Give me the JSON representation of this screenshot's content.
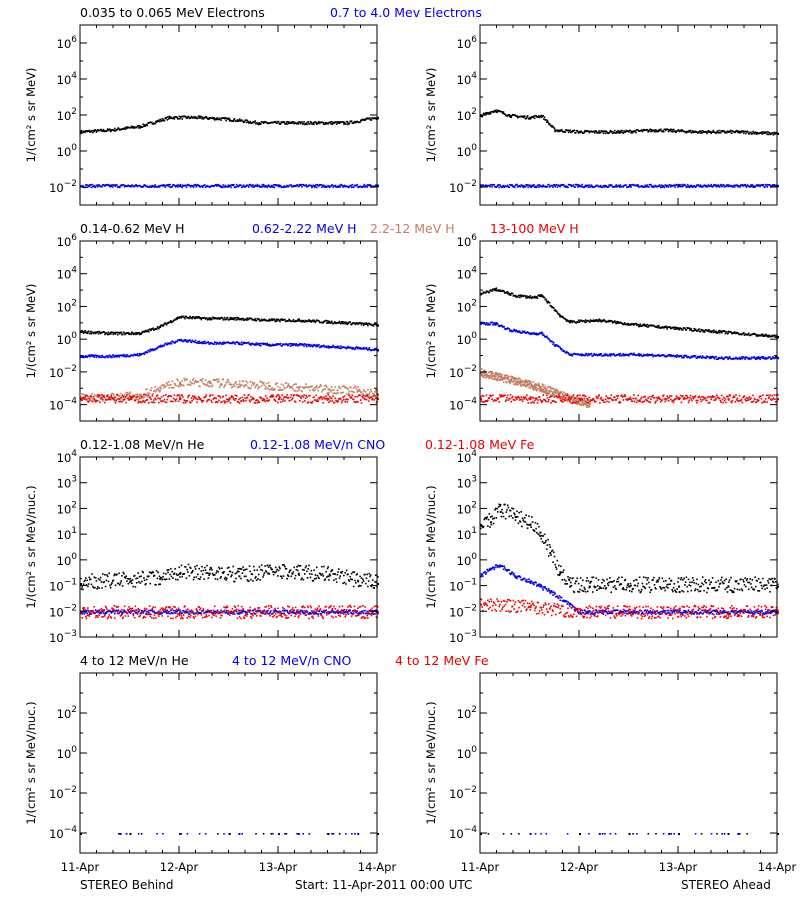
{
  "colors": {
    "black": "#000000",
    "blue": "#0000ee",
    "tan": "#c08060",
    "red": "#ee0000"
  },
  "footer": {
    "left": "STEREO Behind",
    "center": "Start: 11-Apr-2011 00:00 UTC",
    "right": "STEREO Ahead"
  },
  "x_axis": {
    "ticks": [
      "11-Apr",
      "12-Apr",
      "13-Apr",
      "14-Apr"
    ],
    "range_days": [
      0,
      3
    ]
  },
  "rows": [
    {
      "titles": [
        {
          "text": "0.035 to 0.065 MeV Electrons",
          "color": "black"
        },
        {
          "text": "0.7 to 4.0 Mev Electrons",
          "color": "blue"
        }
      ],
      "ylabel": "1/(cm² s sr MeV)",
      "ylog": [
        -3,
        7
      ],
      "yticks": [
        -2,
        0,
        2,
        4,
        6
      ]
    },
    {
      "titles": [
        {
          "text": "0.14-0.62 MeV H",
          "color": "black"
        },
        {
          "text": "0.62-2.22 MeV H",
          "color": "blue"
        },
        {
          "text": "2.2-12 MeV H",
          "color": "tan"
        },
        {
          "text": "13-100 MeV H",
          "color": "red"
        }
      ],
      "ylabel": "1/(cm² s sr MeV)",
      "ylog": [
        -5,
        6
      ],
      "yticks": [
        -4,
        -2,
        0,
        2,
        4,
        6
      ]
    },
    {
      "titles": [
        {
          "text": "0.12-1.08 MeV/n He",
          "color": "black"
        },
        {
          "text": "0.12-1.08 MeV/n CNO",
          "color": "blue"
        },
        {
          "text": "0.12-1.08 MeV Fe",
          "color": "red"
        }
      ],
      "ylabel": "1/(cm² s sr MeV/nuc.)",
      "ylog": [
        -3,
        4
      ],
      "yticks": [
        -3,
        -2,
        -1,
        0,
        1,
        2,
        3,
        4
      ]
    },
    {
      "titles": [
        {
          "text": "4 to 12 MeV/n He",
          "color": "black"
        },
        {
          "text": "4 to 12 MeV/n CNO",
          "color": "blue"
        },
        {
          "text": "4 to 12 MeV Fe",
          "color": "red"
        }
      ],
      "ylabel": "1/(cm² s sr MeV/nuc.)",
      "ylog": [
        -5,
        4
      ],
      "yticks": [
        -4,
        -2,
        0,
        2
      ]
    }
  ],
  "chart_data": [
    {
      "type": "scatter",
      "panel": "electrons-behind",
      "ylog": [
        -3,
        7
      ],
      "series": [
        {
          "name": "0.035 to 0.065 MeV Electrons",
          "color": "#000000",
          "x": [
            0,
            0.3,
            0.6,
            0.9,
            1.2,
            1.5,
            1.8,
            2.1,
            2.4,
            2.7,
            3.0
          ],
          "log10_y": [
            1.1,
            1.2,
            1.4,
            1.9,
            1.9,
            1.8,
            1.6,
            1.6,
            1.6,
            1.6,
            1.9
          ]
        },
        {
          "name": "0.7 to 4.0 Mev Electrons",
          "color": "#0000ee",
          "x": [
            0,
            0.5,
            1.0,
            1.5,
            2.0,
            2.5,
            3.0
          ],
          "log10_y": [
            -1.9,
            -1.9,
            -1.9,
            -1.9,
            -1.9,
            -1.9,
            -1.9
          ]
        }
      ]
    },
    {
      "type": "scatter",
      "panel": "electrons-ahead",
      "ylog": [
        -3,
        7
      ],
      "series": [
        {
          "name": "0.035 to 0.065 MeV Electrons",
          "color": "#000000",
          "x": [
            0,
            0.15,
            0.3,
            0.5,
            0.62,
            0.75,
            1.0,
            1.4,
            1.8,
            2.2,
            2.6,
            3.0
          ],
          "log10_y": [
            2.0,
            2.3,
            2.0,
            1.9,
            2.0,
            1.2,
            1.1,
            1.1,
            1.2,
            1.1,
            1.1,
            1.0
          ]
        },
        {
          "name": "0.7 to 4.0 Mev Electrons",
          "color": "#0000ee",
          "x": [
            0,
            0.5,
            1.0,
            1.5,
            2.0,
            2.5,
            3.0
          ],
          "log10_y": [
            -1.9,
            -1.9,
            -1.9,
            -1.9,
            -1.9,
            -1.9,
            -1.9
          ]
        }
      ]
    },
    {
      "type": "scatter",
      "panel": "protons-behind",
      "ylog": [
        -5,
        6
      ],
      "series": [
        {
          "name": "0.14-0.62 MeV H",
          "color": "#000000",
          "x": [
            0,
            0.3,
            0.6,
            0.8,
            1.0,
            1.3,
            1.6,
            1.9,
            2.2,
            2.5,
            2.8,
            3.0
          ],
          "log10_y": [
            0.5,
            0.4,
            0.4,
            0.8,
            1.4,
            1.3,
            1.3,
            1.2,
            1.2,
            1.1,
            1.0,
            0.9
          ]
        },
        {
          "name": "0.62-2.22 MeV H",
          "color": "#0000ee",
          "x": [
            0,
            0.3,
            0.6,
            0.8,
            1.0,
            1.3,
            1.6,
            1.9,
            2.2,
            2.5,
            2.8,
            3.0
          ],
          "log10_y": [
            -1.0,
            -1.0,
            -0.9,
            -0.4,
            0.0,
            -0.2,
            -0.2,
            -0.3,
            -0.3,
            -0.4,
            -0.5,
            -0.6
          ]
        },
        {
          "name": "2.2-12 MeV H",
          "color": "#c08060",
          "x": [
            0,
            0.3,
            0.6,
            0.8,
            1.0,
            1.3,
            1.6,
            1.9,
            2.2,
            2.5,
            2.8,
            3.0
          ],
          "log10_y": [
            -3.5,
            -3.5,
            -3.4,
            -2.9,
            -2.6,
            -2.6,
            -2.7,
            -2.8,
            -2.9,
            -3.0,
            -3.1,
            -3.3
          ]
        },
        {
          "name": "13-100 MeV H",
          "color": "#ee0000",
          "x": [
            0,
            0.5,
            1.0,
            1.5,
            2.0,
            2.5,
            3.0
          ],
          "log10_y": [
            -3.6,
            -3.6,
            -3.6,
            -3.6,
            -3.6,
            -3.6,
            -3.6
          ]
        }
      ]
    },
    {
      "type": "scatter",
      "panel": "protons-ahead",
      "ylog": [
        -5,
        6
      ],
      "series": [
        {
          "name": "0.14-0.62 MeV H",
          "color": "#000000",
          "x": [
            0,
            0.15,
            0.35,
            0.55,
            0.62,
            0.8,
            0.9,
            1.2,
            1.6,
            2.0,
            2.4,
            2.8,
            3.0
          ],
          "log10_y": [
            2.8,
            3.1,
            2.7,
            2.6,
            2.7,
            1.5,
            1.1,
            1.2,
            0.9,
            0.7,
            0.5,
            0.3,
            0.2
          ]
        },
        {
          "name": "0.62-2.22 MeV H",
          "color": "#0000ee",
          "x": [
            0,
            0.15,
            0.3,
            0.5,
            0.62,
            0.75,
            0.9,
            1.2,
            1.6,
            2.0,
            2.4,
            2.8,
            3.0
          ],
          "log10_y": [
            1.0,
            1.0,
            0.6,
            0.4,
            0.4,
            -0.3,
            -0.9,
            -0.9,
            -0.9,
            -1.0,
            -1.1,
            -1.1,
            -1.1
          ]
        },
        {
          "name": "2.2-12 MeV H",
          "color": "#c08060",
          "x": [
            0,
            0.2,
            0.4,
            0.6,
            0.75,
            0.9,
            1.1
          ],
          "log10_y": [
            -2.0,
            -2.3,
            -2.6,
            -2.9,
            -3.2,
            -3.6,
            -3.9
          ]
        },
        {
          "name": "13-100 MeV H",
          "color": "#ee0000",
          "x": [
            0,
            0.5,
            1.0,
            1.5,
            2.0,
            2.5,
            3.0
          ],
          "log10_y": [
            -3.6,
            -3.6,
            -3.6,
            -3.6,
            -3.6,
            -3.6,
            -3.6
          ]
        }
      ]
    },
    {
      "type": "scatter",
      "panel": "heavy-ions-low-behind",
      "ylog": [
        -3,
        4
      ],
      "series": [
        {
          "name": "0.12-1.08 MeV/n He",
          "color": "#000000",
          "x": [
            0,
            0.5,
            0.8,
            1.0,
            1.3,
            1.6,
            1.9,
            2.2,
            2.5,
            2.8,
            3.0
          ],
          "log10_y": [
            -0.9,
            -0.8,
            -0.7,
            -0.5,
            -0.5,
            -0.6,
            -0.5,
            -0.5,
            -0.6,
            -0.8,
            -0.9
          ]
        },
        {
          "name": "0.12-1.08 MeV/n CNO",
          "color": "#0000ee",
          "x": [
            0,
            0.5,
            1.0,
            1.5,
            2.0,
            2.5,
            3.0
          ],
          "log10_y": [
            -2.0,
            -2.0,
            -2.0,
            -2.0,
            -2.0,
            -2.0,
            -2.0
          ]
        },
        {
          "name": "0.12-1.08 MeV Fe",
          "color": "#ee0000",
          "x": [
            0,
            0.5,
            1.0,
            1.5,
            2.0,
            2.5,
            3.0
          ],
          "log10_y": [
            -2.0,
            -2.0,
            -2.0,
            -2.0,
            -2.0,
            -2.0,
            -2.0
          ]
        }
      ]
    },
    {
      "type": "scatter",
      "panel": "heavy-ions-low-ahead",
      "ylog": [
        -3,
        4
      ],
      "series": [
        {
          "name": "0.12-1.08 MeV/n He",
          "color": "#000000",
          "x": [
            0,
            0.1,
            0.2,
            0.35,
            0.5,
            0.6,
            0.7,
            0.8,
            0.9,
            1.1,
            1.5,
            2.0,
            2.5,
            3.0
          ],
          "log10_y": [
            1.4,
            1.5,
            1.9,
            1.7,
            1.4,
            1.1,
            0.3,
            -0.5,
            -1.0,
            -1.0,
            -1.0,
            -1.0,
            -1.0,
            -1.0
          ]
        },
        {
          "name": "0.12-1.08 MeV/n CNO",
          "color": "#0000ee",
          "x": [
            0,
            0.1,
            0.2,
            0.35,
            0.5,
            0.6,
            0.7,
            1.0,
            1.5,
            2.0,
            2.5,
            3.0
          ],
          "log10_y": [
            -0.6,
            -0.3,
            -0.2,
            -0.6,
            -0.8,
            -1.0,
            -1.2,
            -2.0,
            -2.0,
            -2.0,
            -2.0,
            -2.0
          ]
        },
        {
          "name": "0.12-1.08 MeV Fe",
          "color": "#ee0000",
          "x": [
            0,
            0.5,
            1.0,
            1.5,
            2.0,
            2.5,
            3.0
          ],
          "log10_y": [
            -1.7,
            -1.8,
            -2.0,
            -2.0,
            -2.0,
            -2.0,
            -2.0
          ]
        }
      ]
    },
    {
      "type": "scatter",
      "panel": "heavy-ions-high-behind",
      "ylog": [
        -5,
        4
      ],
      "series": [
        {
          "name": "4 to 12 MeV/n He",
          "color": "#000000",
          "x": [
            0,
            0.5,
            1.0,
            1.5,
            2.0,
            2.5,
            3.0
          ],
          "log10_y": [
            -4.0,
            -4.0,
            -4.0,
            -4.0,
            -4.0,
            -4.0,
            -4.0
          ]
        },
        {
          "name": "4 to 12 MeV/n CNO",
          "color": "#0000ee",
          "x": [
            0.4,
            1.0,
            1.6,
            2.2,
            2.8
          ],
          "log10_y": [
            -4.0,
            -4.0,
            -4.0,
            -4.0,
            -4.0
          ]
        }
      ]
    },
    {
      "type": "scatter",
      "panel": "heavy-ions-high-ahead",
      "ylog": [
        -5,
        4
      ],
      "series": [
        {
          "name": "4 to 12 MeV/n He",
          "color": "#000000",
          "x": [
            0,
            0.5,
            1.0,
            1.5,
            2.0,
            2.5,
            3.0
          ],
          "log10_y": [
            -4.0,
            -4.0,
            -4.0,
            -4.0,
            -4.0,
            -4.0,
            -4.0
          ]
        },
        {
          "name": "4 to 12 MeV/n CNO",
          "color": "#0000ee",
          "x": [
            0.5,
            1.2,
            1.9,
            2.6
          ],
          "log10_y": [
            -4.0,
            -4.0,
            -4.0,
            -4.0
          ]
        }
      ]
    }
  ]
}
